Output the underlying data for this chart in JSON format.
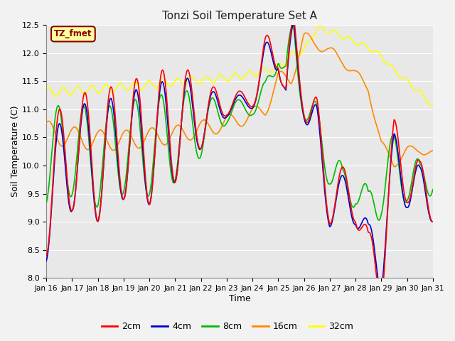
{
  "title": "Tonzi Soil Temperature Set A",
  "xlabel": "Time",
  "ylabel": "Soil Temperature (C)",
  "ylim": [
    8.0,
    12.5
  ],
  "yticks": [
    8.0,
    8.5,
    9.0,
    9.5,
    10.0,
    10.5,
    11.0,
    11.5,
    12.0,
    12.5
  ],
  "legend_label": "TZ_fmet",
  "legend_box_facecolor": "#ffffa0",
  "legend_box_edgecolor": "#880000",
  "series_colors": {
    "2cm": "#ff0000",
    "4cm": "#0000cc",
    "8cm": "#00bb00",
    "16cm": "#ff8800",
    "32cm": "#ffff00"
  },
  "xtick_labels": [
    "Jan 16",
    "Jan 17",
    "Jan 18",
    "Jan 19",
    "Jan 20",
    "Jan 21",
    "Jan 22",
    "Jan 23",
    "Jan 24",
    "Jan 25",
    "Jan 26",
    "Jan 27",
    "Jan 28",
    "Jan 29",
    "Jan 30",
    "Jan 31"
  ],
  "background_color": "#e8e8e8",
  "fig_facecolor": "#f2f2f2",
  "grid_color": "#ffffff",
  "linewidth": 1.2
}
